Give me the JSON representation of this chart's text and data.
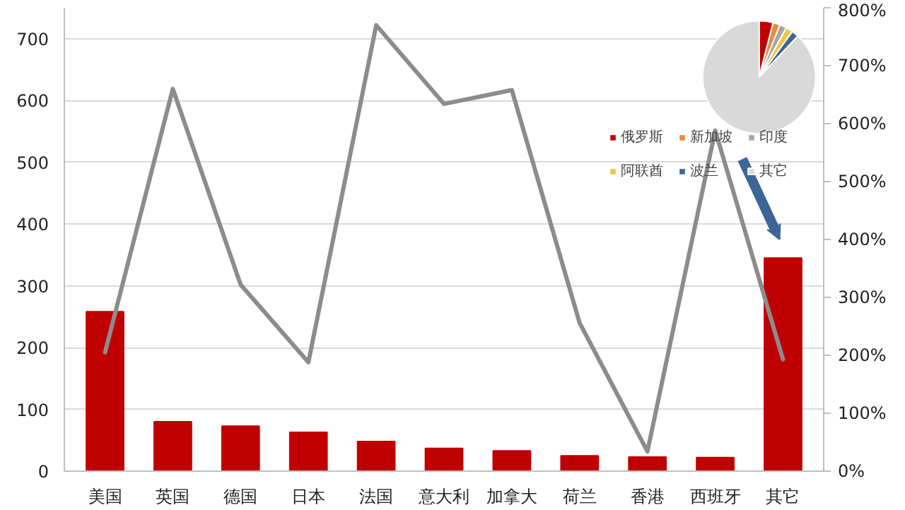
{
  "chart_data": [
    {
      "type": "bar",
      "categories": [
        "美国",
        "英国",
        "德国",
        "日本",
        "法国",
        "意大利",
        "加拿大",
        "荷兰",
        "香港",
        "西班牙",
        "其它"
      ],
      "series": [
        {
          "type": "bar",
          "color": "#c00000",
          "values": [
            258,
            80,
            73,
            63,
            48,
            37,
            33,
            25,
            23,
            22,
            345
          ]
        },
        {
          "type": "line",
          "color": "#8c8c8c",
          "axis": "y2",
          "values": [
            205,
            660,
            322,
            188,
            770,
            634,
            658,
            256,
            34,
            588,
            193
          ]
        }
      ],
      "ylim": [
        0,
        750
      ],
      "yticks": [
        0,
        100,
        200,
        300,
        400,
        500,
        600,
        700
      ],
      "y2lim": [
        0,
        800
      ],
      "y2ticks": [
        {
          "value": 0,
          "label": "0%"
        },
        {
          "value": 100,
          "label": "100%"
        },
        {
          "value": 200,
          "label": "200%"
        },
        {
          "value": 300,
          "label": "300%"
        },
        {
          "value": 400,
          "label": "400%"
        },
        {
          "value": 500,
          "label": "500%"
        },
        {
          "value": 600,
          "label": "600%"
        },
        {
          "value": 700,
          "label": "700%"
        },
        {
          "value": 800,
          "label": "800%"
        }
      ],
      "grid": "y"
    },
    {
      "type": "pie",
      "categories": [
        "俄罗斯",
        "新加坡",
        "印度",
        "阿联酋",
        "波兰",
        "其它"
      ],
      "values": [
        4,
        2,
        2,
        2,
        2,
        88
      ],
      "colors": [
        "#c00000",
        "#e8893a",
        "#a6a6a6",
        "#f2c443",
        "#3d6596",
        "#d9d9d9"
      ],
      "legend": "bottom"
    }
  ]
}
